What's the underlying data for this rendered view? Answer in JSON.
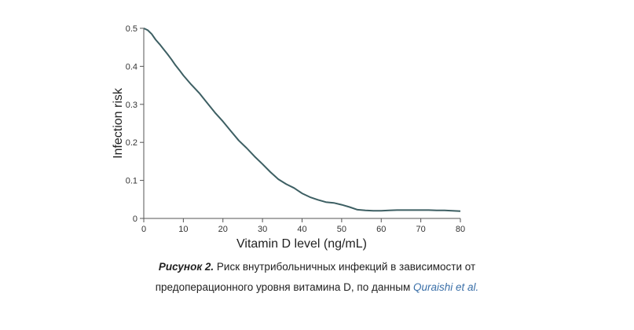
{
  "chart_data": {
    "type": "line",
    "xlabel": "Vitamin D level (ng/mL)",
    "ylabel": "Infection risk",
    "xlim": [
      0,
      80
    ],
    "ylim": [
      0,
      0.5
    ],
    "x_ticks": [
      "0",
      "10",
      "20",
      "30",
      "40",
      "50",
      "60",
      "70",
      "80"
    ],
    "y_ticks": [
      "0",
      "0.1",
      "0.2",
      "0.3",
      "0.4",
      "0.5"
    ],
    "grid": false,
    "line_color": "#3d5f63",
    "series": [
      {
        "x": [
          0,
          1,
          2,
          3,
          4,
          5,
          6,
          7,
          8,
          9,
          10,
          12,
          14,
          16,
          18,
          20,
          22,
          24,
          26,
          28,
          30,
          32,
          34,
          36,
          38,
          40,
          42,
          44,
          46,
          48,
          50,
          52,
          54,
          56,
          58,
          60,
          62,
          64,
          66,
          68,
          70,
          72,
          74,
          76,
          78,
          80
        ],
        "values": [
          0.5,
          0.495,
          0.485,
          0.47,
          0.458,
          0.445,
          0.432,
          0.418,
          0.403,
          0.39,
          0.376,
          0.352,
          0.33,
          0.304,
          0.278,
          0.255,
          0.23,
          0.205,
          0.185,
          0.163,
          0.143,
          0.122,
          0.103,
          0.09,
          0.08,
          0.066,
          0.056,
          0.049,
          0.043,
          0.041,
          0.036,
          0.03,
          0.023,
          0.021,
          0.02,
          0.02,
          0.021,
          0.022,
          0.022,
          0.022,
          0.022,
          0.022,
          0.021,
          0.021,
          0.02,
          0.019
        ]
      }
    ]
  },
  "caption": {
    "label": "Рисунок 2.",
    "text_line1": " Риск внутрибольничных инфекций в зависимости от",
    "text_line2": "предоперационного уровня витамина D, по данным ",
    "source": "Quraishi et al."
  }
}
